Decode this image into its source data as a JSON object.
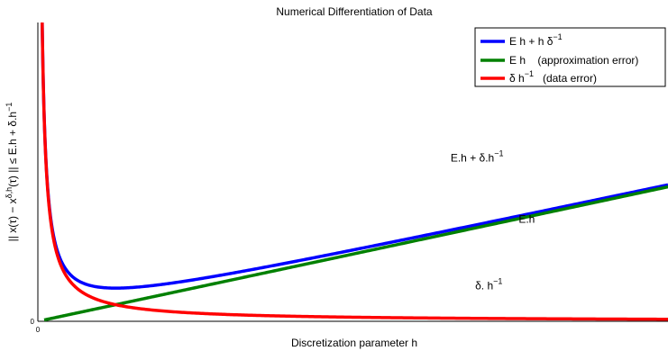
{
  "chart_data": {
    "type": "line",
    "title": "Numerical Differentiation of Data",
    "xlabel": "Discretization parameter h",
    "ylabel": "|| x(τ) − x^{δ,h}(τ) ||  ≤  E.h + δ.h^{−1}",
    "ylabel_parts": {
      "a": "|| x(τ) − x",
      "a_sup": "δ,h",
      "b": "(τ) ||  ≤  E.h + δ.h",
      "b_sup": "−1"
    },
    "xlim": [
      0,
      10
    ],
    "ylim": [
      0,
      10
    ],
    "x_ticks": [
      "0"
    ],
    "y_ticks": [
      "0"
    ],
    "grid": false,
    "legend_position": "top-right",
    "legend": [
      {
        "text": "E h + h δ",
        "sup": "−1"
      },
      {
        "text": "E h    (approximation error)",
        "sup": ""
      },
      {
        "text": "δ h",
        "sup": "−1",
        "after": "   (data error)"
      }
    ],
    "params": {
      "E": 0.45,
      "delta": 0.685
    },
    "series": [
      {
        "formula": "E*h + delta/h",
        "color": "#0000ff",
        "x_range": [
          0.066,
          10
        ]
      },
      {
        "formula": "E*h",
        "color": "#008000",
        "x_range": [
          0.1,
          10
        ]
      },
      {
        "formula": "delta/h",
        "color": "#ff0000",
        "x_range": [
          0.066,
          10
        ]
      }
    ],
    "annotations": [
      {
        "text": "E.h + δ.h",
        "sup": "−1",
        "x": 6.55,
        "y": 5.35
      },
      {
        "text": "E.h",
        "sup": "",
        "x": 7.63,
        "y": 3.3
      },
      {
        "text": "δ. h",
        "sup": "−1",
        "x": 6.94,
        "y": 1.07
      }
    ]
  }
}
